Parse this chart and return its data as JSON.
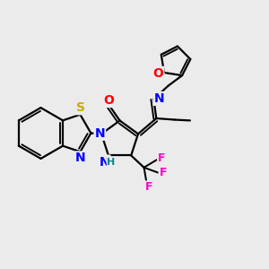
{
  "background_color": "#ebebeb",
  "atom_colors": {
    "N": "#0000ff",
    "O_carbonyl": "#ff0000",
    "O_furan": "#ff0000",
    "S": "#ccaa00",
    "F": "#ff00cc",
    "C": "#000000",
    "H": "#008888"
  },
  "bond_color": "#000000",
  "bond_width": 1.6,
  "font_size_atom": 9,
  "title": ""
}
